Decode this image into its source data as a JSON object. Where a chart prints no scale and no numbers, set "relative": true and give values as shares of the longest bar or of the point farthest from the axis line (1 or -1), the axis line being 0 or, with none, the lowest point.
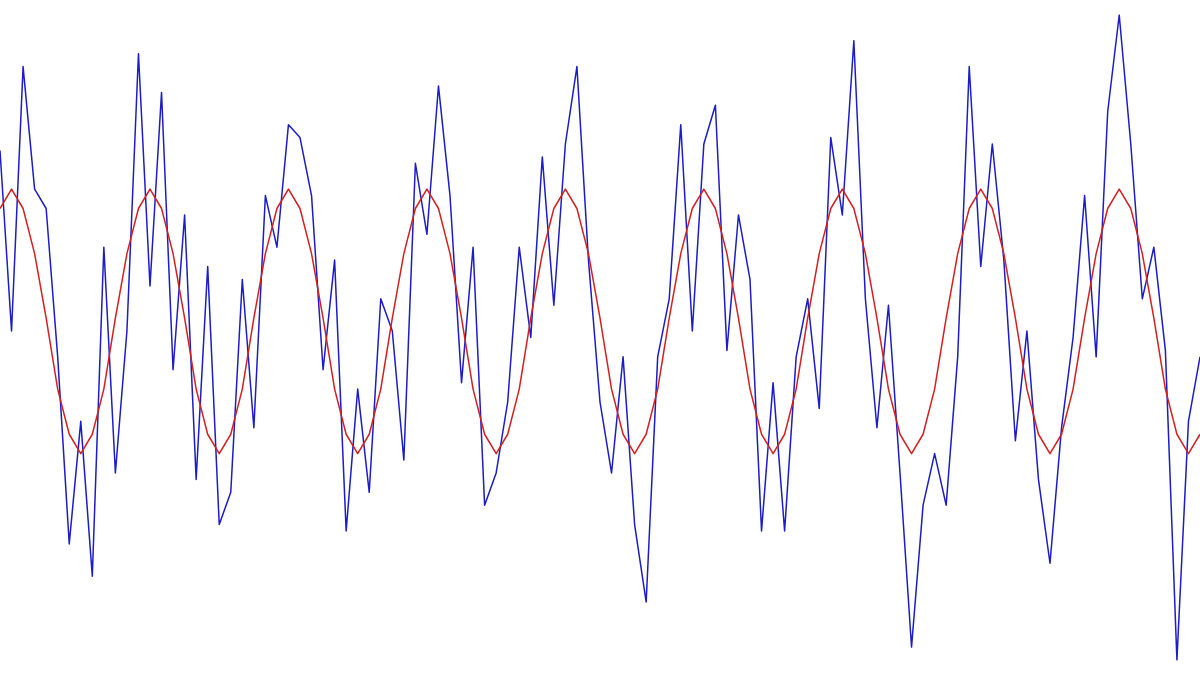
{
  "chart_data": {
    "type": "line",
    "relative": true,
    "categories": [
      null,
      null,
      null,
      null,
      null,
      null,
      null,
      null,
      null,
      null,
      null,
      null,
      null,
      null,
      null,
      null,
      null,
      null,
      null,
      null,
      null,
      null,
      null,
      null,
      null,
      null,
      null,
      null,
      null,
      null,
      null,
      null,
      null,
      null,
      null,
      null,
      null,
      null,
      null,
      null,
      null,
      null,
      null,
      null,
      null,
      null,
      null,
      null,
      null,
      null,
      null,
      null,
      null,
      null,
      null,
      null,
      null,
      null,
      null,
      null,
      null,
      null,
      null,
      null,
      null,
      null,
      null,
      null,
      null,
      null,
      null,
      null,
      null,
      null,
      null,
      null,
      null,
      null,
      null,
      null,
      null,
      null,
      null,
      null,
      null,
      null,
      null,
      null,
      null,
      null,
      null,
      null,
      null,
      null,
      null,
      null,
      null,
      null,
      null,
      null,
      null,
      null,
      null,
      null,
      null
    ],
    "series": [
      {
        "color": "#1c1cc8",
        "values": [
          0.79,
          0.51,
          0.92,
          0.73,
          0.7,
          0.47,
          0.18,
          0.37,
          0.13,
          0.64,
          0.29,
          0.51,
          0.94,
          0.58,
          0.88,
          0.45,
          0.69,
          0.28,
          0.61,
          0.21,
          0.26,
          0.59,
          0.36,
          0.72,
          0.64,
          0.83,
          0.81,
          0.72,
          0.45,
          0.62,
          0.2,
          0.42,
          0.26,
          0.56,
          0.51,
          0.31,
          0.77,
          0.66,
          0.89,
          0.72,
          0.43,
          0.64,
          0.24,
          0.29,
          0.4,
          0.64,
          0.5,
          0.78,
          0.55,
          0.8,
          0.92,
          0.62,
          0.4,
          0.29,
          0.47,
          0.21,
          0.09,
          0.47,
          0.56,
          0.83,
          0.51,
          0.8,
          0.86,
          0.48,
          0.69,
          0.59,
          0.2,
          0.43,
          0.2,
          0.47,
          0.56,
          0.39,
          0.81,
          0.69,
          0.96,
          0.56,
          0.36,
          0.55,
          0.29,
          0.02,
          0.24,
          0.32,
          0.24,
          0.47,
          0.92,
          0.61,
          0.8,
          0.62,
          0.34,
          0.51,
          0.28,
          0.15,
          0.36,
          0.5,
          0.72,
          0.47,
          0.85,
          1,
          0.8,
          0.56,
          0.64,
          0.48,
          0,
          0.37,
          0.47
        ]
      },
      {
        "color": "#d42020",
        "values": [
          0.7,
          0.73,
          0.7,
          0.63,
          0.53,
          0.42,
          0.35,
          0.32,
          0.35,
          0.42,
          0.53,
          0.63,
          0.7,
          0.73,
          0.7,
          0.63,
          0.53,
          0.42,
          0.35,
          0.32,
          0.35,
          0.42,
          0.53,
          0.63,
          0.7,
          0.73,
          0.7,
          0.63,
          0.53,
          0.42,
          0.35,
          0.32,
          0.35,
          0.42,
          0.53,
          0.63,
          0.7,
          0.73,
          0.7,
          0.63,
          0.53,
          0.42,
          0.35,
          0.32,
          0.35,
          0.42,
          0.53,
          0.63,
          0.7,
          0.73,
          0.7,
          0.63,
          0.53,
          0.42,
          0.35,
          0.32,
          0.35,
          0.42,
          0.53,
          0.63,
          0.7,
          0.73,
          0.7,
          0.63,
          0.53,
          0.42,
          0.35,
          0.32,
          0.35,
          0.42,
          0.53,
          0.63,
          0.7,
          0.73,
          0.7,
          0.63,
          0.53,
          0.42,
          0.35,
          0.32,
          0.35,
          0.42,
          0.53,
          0.63,
          0.7,
          0.73,
          0.7,
          0.63,
          0.53,
          0.42,
          0.35,
          0.32,
          0.35,
          0.42,
          0.53,
          0.63,
          0.7,
          0.73,
          0.7,
          0.63,
          0.53,
          0.42,
          0.35,
          0.32,
          0.35
        ]
      }
    ]
  }
}
